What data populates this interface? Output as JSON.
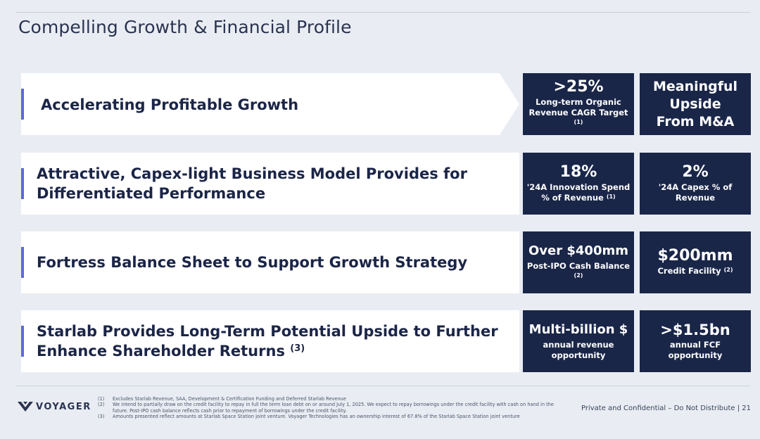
{
  "title": "Compelling Growth & Financial Profile",
  "rows": [
    {
      "headline_lines": [
        "Accelerating Profitable Growth"
      ],
      "boxes": [
        {
          "big": ">25%",
          "small_lines": [
            "Long-term Organic",
            "Revenue CAGR Target"
          ],
          "footnote_ref": "(1)"
        },
        {
          "big_lines": [
            "Meaningful",
            "Upside",
            "From M&A"
          ]
        }
      ]
    },
    {
      "headline_lines": [
        "Attractive, Capex-light Business Model Provides for",
        "Differentiated Performance"
      ],
      "boxes": [
        {
          "big": "18%",
          "small_lines": [
            "'24A Innovation Spend",
            "% of Revenue"
          ],
          "footnote_ref": "(1)"
        },
        {
          "big": "2%",
          "small_lines": [
            "'24A Capex % of",
            "Revenue"
          ]
        }
      ]
    },
    {
      "headline_lines": [
        "Fortress Balance Sheet to Support Growth Strategy"
      ],
      "boxes": [
        {
          "big": "Over $400mm",
          "small_lines": [
            "Post-IPO Cash Balance"
          ],
          "footnote_ref": "(2)"
        },
        {
          "big": "$200mm",
          "small_lines": [
            "Credit Facility"
          ],
          "footnote_ref": "(2)"
        }
      ]
    },
    {
      "headline_lines": [
        "Starlab Provides Long-Term Potential Upside to Further",
        "Enhance Shareholder Returns"
      ],
      "headline_footnote_ref": "(3)",
      "boxes": [
        {
          "big": "Multi-billion $",
          "small_lines": [
            "annual revenue",
            "opportunity"
          ]
        },
        {
          "big": ">$1.5bn",
          "small_lines": [
            "annual FCF",
            "opportunity"
          ]
        }
      ]
    }
  ],
  "logo_text": "VOYAGER",
  "footnotes": [
    {
      "num": "(1)",
      "text": "Excludes Starlab Revenue, SAA, Development & Certification Funding and Deferred Starlab Revenue"
    },
    {
      "num": "(2)",
      "text": "We intend to partially draw on the credit facility to repay in full the term loan debt on or around July 1, 2025. We expect to repay borrowings under the credit facility with cash on hand in the future. Post-IPO cash balance reflects cash prior to repayment of borrowings under the credit facility."
    },
    {
      "num": "(3)",
      "text": "Amounts presented reflect amounts at Starlab Space Station joint venture. Voyager Technologies has an ownership interest of 67.8% of the Starlab Space Station joint venture"
    }
  ],
  "confidential": "Private and Confidential – Do Not Distribute | 21",
  "colors": {
    "navy": "#1a2648",
    "accent": "#5b6bd6",
    "background": "#e9edf3"
  }
}
